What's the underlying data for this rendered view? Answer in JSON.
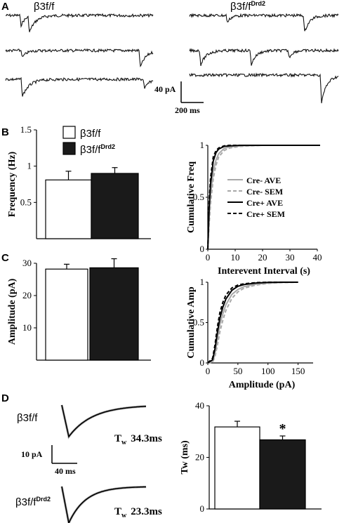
{
  "panel_labels": [
    "A",
    "B",
    "C",
    "D"
  ],
  "panel_a": {
    "headers": {
      "left": "β3f/f",
      "right_main": "β3f/f",
      "right_sup": "Drd2"
    },
    "scale": {
      "y_label": "40 pA",
      "x_label": "200 ms"
    }
  },
  "legend_bars": {
    "wt": "β3f/f",
    "ko_main": "β3f/f",
    "ko_sup": "Drd2",
    "colors": {
      "wt": "#ffffff",
      "ko": "#1a1a1a"
    }
  },
  "cum_legend": [
    "Cre- AVE",
    "Cre- SEM",
    "Cre+ AVE",
    "Cre+ SEM"
  ],
  "panel_d": {
    "label_wt": "β3f/f",
    "label_ko_main": "β3f/f",
    "label_ko_sup": "Drd2",
    "tau_wt_sym": "T",
    "tau_wt_sub": "w",
    "tau_wt_val": "34.3ms",
    "tau_ko_sym": "T",
    "tau_ko_sub": "w",
    "tau_ko_val": "23.3ms",
    "scale_y": "10 pA",
    "scale_x": "40 ms",
    "sig": "*"
  },
  "chart_data": [
    {
      "id": "freq_bar",
      "type": "bar",
      "ylabel": "Frequency (Hz)",
      "ylim": [
        0,
        1.5
      ],
      "yticks": [
        0.5,
        1,
        1.5
      ],
      "ytick_labels": [
        "0.5",
        "1",
        "1.5"
      ],
      "categories": [
        "β3f/f",
        "β3f/fDrd2"
      ],
      "values": [
        0.81,
        0.9
      ],
      "errors": [
        0.12,
        0.08
      ]
    },
    {
      "id": "freq_cdf",
      "type": "line",
      "ylabel": "Cumulative Freq",
      "xlabel": "Interevent Interval (s)",
      "xlim": [
        0,
        40
      ],
      "ylim": [
        0,
        1
      ],
      "xticks": [
        0,
        10,
        20,
        30,
        40
      ],
      "xtick_labels": [
        "0",
        "10",
        "20",
        "30",
        "40"
      ],
      "yticks": [
        0,
        0.5,
        1
      ],
      "ytick_labels": [
        "0",
        "0.5",
        "1"
      ],
      "series": [
        {
          "name": "Cre- AVE",
          "style": "solid",
          "color": "#a8a8a8",
          "x": [
            0,
            0.5,
            1,
            2,
            3,
            4,
            6,
            8,
            12,
            20,
            41
          ],
          "y": [
            0,
            0.3,
            0.52,
            0.75,
            0.86,
            0.92,
            0.97,
            0.985,
            0.995,
            1,
            1
          ]
        },
        {
          "name": "Cre- SEM",
          "style": "dashed",
          "color": "#a8a8a8",
          "x": [
            0,
            0.5,
            1,
            2,
            3,
            4,
            6,
            8,
            12,
            20,
            41
          ],
          "y": [
            0,
            0.24,
            0.44,
            0.68,
            0.81,
            0.89,
            0.95,
            0.975,
            0.99,
            1,
            1
          ]
        },
        {
          "name": "Cre+ AVE",
          "style": "solid",
          "color": "#000000",
          "x": [
            0,
            0.5,
            1,
            2,
            3,
            4,
            6,
            8,
            12,
            20,
            41
          ],
          "y": [
            0,
            0.4,
            0.63,
            0.85,
            0.93,
            0.965,
            0.99,
            0.995,
            1,
            1,
            1
          ]
        },
        {
          "name": "Cre+ SEM",
          "style": "dashed",
          "color": "#000000",
          "x": [
            0,
            0.5,
            1,
            2,
            3,
            4,
            6,
            8,
            12,
            20,
            41
          ],
          "y": [
            0,
            0.46,
            0.69,
            0.89,
            0.95,
            0.975,
            0.995,
            1,
            1,
            1,
            1
          ]
        }
      ]
    },
    {
      "id": "amp_bar",
      "type": "bar",
      "ylabel": "Amplitude (pA)",
      "ylim": [
        0,
        30
      ],
      "yticks": [
        10,
        20,
        30
      ],
      "ytick_labels": [
        "10",
        "20",
        "30"
      ],
      "categories": [
        "β3f/f",
        "β3f/fDrd2"
      ],
      "values": [
        28.2,
        28.6
      ],
      "errors": [
        1.5,
        2.8
      ]
    },
    {
      "id": "amp_cdf",
      "type": "line",
      "ylabel": "Cumulative Amp",
      "xlabel": "Amplitude (pA)",
      "xlim": [
        0,
        175
      ],
      "ylim": [
        0,
        1
      ],
      "xticks": [
        0,
        50,
        100,
        150
      ],
      "xtick_labels": [
        "0",
        "50",
        "100",
        "150"
      ],
      "yticks": [
        0,
        0.5,
        1
      ],
      "ytick_labels": [
        "0",
        "0.5",
        "1"
      ],
      "series": [
        {
          "name": "Cre- AVE",
          "style": "solid",
          "color": "#a8a8a8",
          "x": [
            0,
            8,
            12,
            16,
            20,
            25,
            30,
            40,
            50,
            60,
            80,
            100,
            125,
            150
          ],
          "y": [
            0,
            0.02,
            0.12,
            0.3,
            0.47,
            0.61,
            0.72,
            0.85,
            0.91,
            0.945,
            0.975,
            0.99,
            0.998,
            1
          ]
        },
        {
          "name": "Cre- SEM",
          "style": "dashed",
          "color": "#a8a8a8",
          "x": [
            0,
            8,
            12,
            16,
            20,
            25,
            30,
            40,
            50,
            60,
            80,
            100,
            125,
            150
          ],
          "y": [
            0,
            0.01,
            0.08,
            0.22,
            0.38,
            0.53,
            0.65,
            0.8,
            0.88,
            0.925,
            0.965,
            0.985,
            0.996,
            1
          ]
        },
        {
          "name": "Cre+ AVE",
          "style": "solid",
          "color": "#000000",
          "x": [
            0,
            8,
            12,
            16,
            20,
            25,
            30,
            40,
            50,
            60,
            80,
            100,
            125,
            150
          ],
          "y": [
            0,
            0.04,
            0.18,
            0.38,
            0.55,
            0.69,
            0.79,
            0.9,
            0.95,
            0.97,
            0.99,
            0.997,
            1,
            1
          ]
        },
        {
          "name": "Cre+ SEM",
          "style": "dashed",
          "color": "#000000",
          "x": [
            0,
            8,
            12,
            16,
            20,
            25,
            30,
            40,
            50,
            60,
            80,
            100,
            125,
            150
          ],
          "y": [
            0,
            0.06,
            0.23,
            0.45,
            0.62,
            0.75,
            0.84,
            0.93,
            0.965,
            0.98,
            0.995,
            1,
            1,
            1
          ]
        }
      ]
    },
    {
      "id": "tau_bar",
      "type": "bar",
      "ylabel": "Tw (ms)",
      "ylim": [
        0,
        40
      ],
      "yticks": [
        0,
        20,
        40
      ],
      "ytick_labels": [
        "0",
        "20",
        "40"
      ],
      "categories": [
        "β3f/f",
        "β3f/fDrd2"
      ],
      "values": [
        31.8,
        26.8
      ],
      "errors": [
        2.2,
        1.5
      ]
    }
  ]
}
